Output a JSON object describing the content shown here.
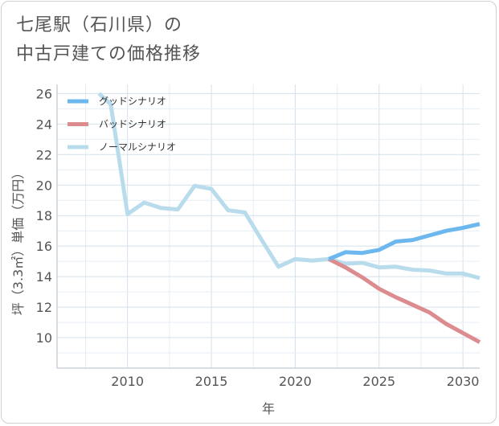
{
  "title": {
    "line1": "七尾駅（石川県）の",
    "line2": "中古戸建ての価格推移"
  },
  "chart_data": {
    "type": "line",
    "xlabel": "年",
    "ylabel": "坪（3.3㎡）単価（万円）",
    "xlim": [
      2005.8,
      2031
    ],
    "ylim": [
      8,
      26.6
    ],
    "x_ticks": [
      2010,
      2015,
      2020,
      2025,
      2030
    ],
    "y_ticks": [
      10,
      12,
      14,
      16,
      18,
      20,
      22,
      24,
      26
    ],
    "legend_position": "top-left",
    "series": [
      {
        "name": "グッドシナリオ",
        "color": "#6cb8ee",
        "x": [
          2022,
          2023,
          2024,
          2025,
          2026,
          2027,
          2028,
          2029,
          2030,
          2031
        ],
        "y": [
          15.15,
          15.6,
          15.55,
          15.75,
          16.3,
          16.4,
          16.7,
          17.0,
          17.2,
          17.45
        ]
      },
      {
        "name": "バッドシナリオ",
        "color": "#dc8c8f",
        "x": [
          2022,
          2023,
          2024,
          2025,
          2026,
          2027,
          2028,
          2029,
          2030,
          2031
        ],
        "y": [
          15.15,
          14.6,
          13.95,
          13.2,
          12.65,
          12.15,
          11.65,
          10.9,
          10.3,
          9.7
        ]
      },
      {
        "name": "ノーマルシナリオ",
        "color": "#b9dcec",
        "x": [
          2008.3,
          2009,
          2010,
          2011,
          2012,
          2013,
          2014,
          2015,
          2016,
          2017,
          2018,
          2019,
          2020,
          2021,
          2022,
          2023,
          2024,
          2025,
          2026,
          2027,
          2028,
          2029,
          2030,
          2031
        ],
        "y": [
          26.0,
          25.3,
          18.1,
          18.85,
          18.5,
          18.4,
          19.95,
          19.75,
          18.35,
          18.2,
          16.4,
          14.65,
          15.15,
          15.05,
          15.15,
          14.85,
          14.9,
          14.6,
          14.65,
          14.45,
          14.4,
          14.2,
          14.2,
          13.9
        ]
      }
    ]
  }
}
